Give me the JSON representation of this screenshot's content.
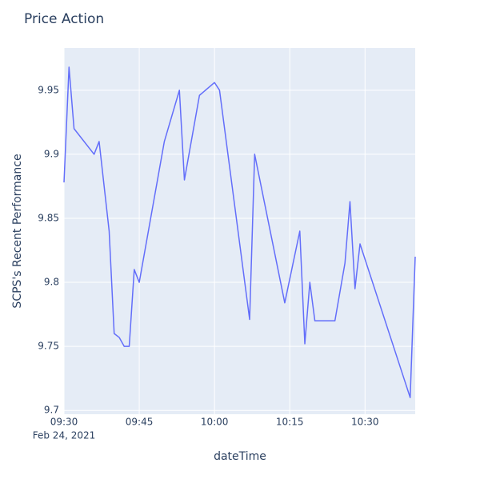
{
  "chart_data": {
    "type": "line",
    "title": "Price Action",
    "x_label": "dateTime",
    "y_label": "SCPS's Recent Performance",
    "x": [
      "2021-02-24 09:30",
      "2021-02-24 09:31",
      "2021-02-24 09:32",
      "2021-02-24 09:36",
      "2021-02-24 09:37",
      "2021-02-24 09:39",
      "2021-02-24 09:40",
      "2021-02-24 09:41",
      "2021-02-24 09:42",
      "2021-02-24 09:43",
      "2021-02-24 09:44",
      "2021-02-24 09:45",
      "2021-02-24 09:50",
      "2021-02-24 09:53",
      "2021-02-24 09:54",
      "2021-02-24 09:57",
      "2021-02-24 10:00",
      "2021-02-24 10:01",
      "2021-02-24 10:07",
      "2021-02-24 10:08",
      "2021-02-24 10:14",
      "2021-02-24 10:17",
      "2021-02-24 10:18",
      "2021-02-24 10:19",
      "2021-02-24 10:20",
      "2021-02-24 10:24",
      "2021-02-24 10:26",
      "2021-02-24 10:27",
      "2021-02-24 10:28",
      "2021-02-24 10:29",
      "2021-02-24 10:39",
      "2021-02-24 10:40"
    ],
    "series": [
      {
        "name": "SCPS",
        "color": "#636efa",
        "values": [
          9.878,
          9.968,
          9.92,
          9.9,
          9.91,
          9.84,
          9.76,
          9.757,
          9.75,
          9.75,
          9.81,
          9.8,
          9.91,
          9.95,
          9.88,
          9.946,
          9.956,
          9.95,
          9.771,
          9.9,
          9.784,
          9.84,
          9.752,
          9.8,
          9.77,
          9.77,
          9.815,
          9.863,
          9.795,
          9.83,
          9.71,
          9.82
        ]
      }
    ],
    "xlim": [
      "2021-02-24 09:30",
      "2021-02-24 10:40"
    ],
    "xticks": [
      {
        "value": "2021-02-24 09:30",
        "label": "09:30"
      },
      {
        "value": "2021-02-24 09:45",
        "label": "09:45"
      },
      {
        "value": "2021-02-24 10:00",
        "label": "10:00"
      },
      {
        "value": "2021-02-24 10:15",
        "label": "10:15"
      },
      {
        "value": "2021-02-24 10:30",
        "label": "10:30"
      }
    ],
    "x_date_label": "Feb 24, 2021",
    "ylim": [
      9.697,
      9.983
    ],
    "yticks": [
      9.7,
      9.75,
      9.8,
      9.85,
      9.9,
      9.95
    ],
    "grid": true
  }
}
